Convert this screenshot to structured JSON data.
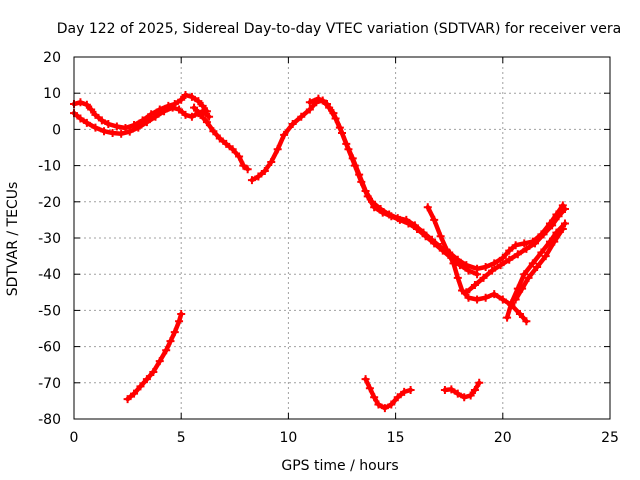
{
  "chart_data": {
    "type": "scatter",
    "title": "Day 122 of 2025, Sidereal Day-to-day VTEC variation (SDTVAR) for receiver vera",
    "xlabel": "GPS time / hours",
    "ylabel": "SDTVAR / TECUs",
    "xlim": [
      0,
      25
    ],
    "ylim": [
      -80,
      20
    ],
    "xticks": [
      0,
      5,
      10,
      15,
      20,
      25
    ],
    "yticks": [
      20,
      10,
      0,
      -10,
      -20,
      -30,
      -40,
      -50,
      -60,
      -70,
      -80
    ],
    "grid": true,
    "color": "#ff0000",
    "series": [
      {
        "name": "trace-1",
        "points": [
          [
            0.0,
            7.0
          ],
          [
            0.3,
            7.5
          ],
          [
            0.6,
            6.8
          ],
          [
            0.8,
            5.5
          ],
          [
            1.0,
            4.0
          ],
          [
            1.3,
            2.5
          ],
          [
            1.6,
            1.5
          ],
          [
            2.0,
            0.8
          ],
          [
            2.4,
            0.4
          ],
          [
            2.8,
            1.2
          ],
          [
            3.2,
            2.5
          ],
          [
            3.6,
            4.2
          ],
          [
            4.0,
            5.5
          ],
          [
            4.4,
            6.5
          ],
          [
            4.7,
            7.0
          ],
          [
            5.0,
            8.2
          ],
          [
            5.2,
            9.5
          ],
          [
            5.5,
            9.0
          ],
          [
            5.8,
            7.8
          ],
          [
            6.0,
            6.5
          ],
          [
            6.2,
            5.0
          ]
        ]
      },
      {
        "name": "trace-2",
        "points": [
          [
            0.0,
            4.5
          ],
          [
            0.3,
            3.0
          ],
          [
            0.6,
            1.8
          ],
          [
            1.0,
            0.5
          ],
          [
            1.4,
            -0.5
          ],
          [
            1.8,
            -1.0
          ],
          [
            2.2,
            -1.2
          ],
          [
            2.6,
            -0.6
          ],
          [
            3.0,
            0.5
          ],
          [
            3.4,
            2.0
          ],
          [
            3.8,
            3.5
          ],
          [
            4.2,
            5.0
          ],
          [
            4.6,
            6.0
          ],
          [
            4.9,
            5.5
          ],
          [
            5.2,
            4.0
          ],
          [
            5.5,
            3.5
          ],
          [
            5.8,
            4.5
          ],
          [
            6.0,
            5.0
          ],
          [
            6.3,
            3.5
          ]
        ]
      },
      {
        "name": "trace-3",
        "points": [
          [
            5.6,
            6.0
          ],
          [
            5.9,
            4.0
          ],
          [
            6.2,
            2.0
          ],
          [
            6.5,
            -0.5
          ],
          [
            6.8,
            -2.5
          ],
          [
            7.1,
            -4.0
          ],
          [
            7.4,
            -5.5
          ],
          [
            7.7,
            -7.5
          ],
          [
            7.9,
            -10.0
          ],
          [
            8.1,
            -11.0
          ]
        ]
      },
      {
        "name": "trace-4",
        "points": [
          [
            8.3,
            -14.0
          ],
          [
            8.6,
            -13.0
          ],
          [
            8.9,
            -11.5
          ],
          [
            9.2,
            -9.0
          ],
          [
            9.5,
            -5.5
          ],
          [
            9.8,
            -1.5
          ],
          [
            10.2,
            1.5
          ],
          [
            10.6,
            3.5
          ],
          [
            11.0,
            5.5
          ],
          [
            11.3,
            7.5
          ],
          [
            11.6,
            8.0
          ],
          [
            11.9,
            6.0
          ],
          [
            12.2,
            3.0
          ],
          [
            12.5,
            -1.0
          ],
          [
            12.8,
            -5.5
          ],
          [
            13.1,
            -10.0
          ],
          [
            13.4,
            -14.5
          ],
          [
            13.7,
            -18.5
          ],
          [
            14.0,
            -21.5
          ],
          [
            14.4,
            -23.0
          ],
          [
            14.8,
            -24.0
          ],
          [
            15.2,
            -25.0
          ],
          [
            15.6,
            -26.0
          ],
          [
            16.0,
            -27.5
          ],
          [
            16.4,
            -29.5
          ],
          [
            16.8,
            -31.5
          ],
          [
            17.2,
            -33.5
          ],
          [
            17.6,
            -35.5
          ],
          [
            18.0,
            -37.5
          ],
          [
            18.4,
            -39.0
          ],
          [
            18.8,
            -40.0
          ]
        ]
      },
      {
        "name": "trace-5",
        "points": [
          [
            11.0,
            7.5
          ],
          [
            11.4,
            8.5
          ],
          [
            11.8,
            7.0
          ],
          [
            12.1,
            4.5
          ],
          [
            12.4,
            0.5
          ],
          [
            12.7,
            -4.0
          ],
          [
            13.0,
            -8.0
          ],
          [
            13.3,
            -12.5
          ],
          [
            13.6,
            -17.0
          ],
          [
            13.9,
            -20.0
          ],
          [
            14.3,
            -22.0
          ],
          [
            14.7,
            -23.5
          ],
          [
            15.1,
            -24.5
          ],
          [
            15.5,
            -25.0
          ],
          [
            15.9,
            -26.5
          ],
          [
            16.3,
            -28.5
          ],
          [
            16.7,
            -30.5
          ],
          [
            17.1,
            -32.5
          ],
          [
            17.5,
            -34.0
          ],
          [
            17.9,
            -36.0
          ],
          [
            18.3,
            -37.5
          ],
          [
            18.8,
            -38.5
          ],
          [
            19.2,
            -38.0
          ],
          [
            19.6,
            -37.0
          ],
          [
            20.0,
            -35.5
          ],
          [
            20.3,
            -33.5
          ],
          [
            20.6,
            -32.0
          ],
          [
            21.0,
            -31.5
          ],
          [
            21.4,
            -31.0
          ],
          [
            21.8,
            -29.0
          ],
          [
            22.2,
            -26.0
          ],
          [
            22.5,
            -23.5
          ],
          [
            22.8,
            -21.0
          ]
        ]
      },
      {
        "name": "trace-6",
        "points": [
          [
            16.5,
            -21.5
          ],
          [
            16.8,
            -25.0
          ],
          [
            17.1,
            -29.5
          ],
          [
            17.4,
            -33.5
          ],
          [
            17.7,
            -37.0
          ],
          [
            17.9,
            -41.0
          ],
          [
            18.1,
            -44.5
          ],
          [
            18.4,
            -46.5
          ],
          [
            18.8,
            -47.0
          ],
          [
            19.2,
            -46.5
          ],
          [
            19.6,
            -45.5
          ],
          [
            20.0,
            -47.0
          ],
          [
            20.4,
            -48.5
          ],
          [
            20.8,
            -51.0
          ],
          [
            21.1,
            -53.0
          ]
        ]
      },
      {
        "name": "trace-7",
        "points": [
          [
            18.3,
            -45.0
          ],
          [
            18.7,
            -43.0
          ],
          [
            19.1,
            -41.0
          ],
          [
            19.5,
            -39.0
          ],
          [
            19.9,
            -37.5
          ],
          [
            20.3,
            -36.0
          ],
          [
            20.7,
            -34.5
          ],
          [
            21.1,
            -33.0
          ],
          [
            21.5,
            -31.5
          ],
          [
            21.9,
            -29.0
          ],
          [
            22.3,
            -26.5
          ],
          [
            22.6,
            -24.0
          ],
          [
            22.9,
            -22.0
          ]
        ]
      },
      {
        "name": "trace-8",
        "points": [
          [
            20.2,
            -52.0
          ],
          [
            20.4,
            -48.0
          ],
          [
            20.7,
            -44.0
          ],
          [
            21.0,
            -40.0
          ],
          [
            21.4,
            -37.0
          ],
          [
            21.8,
            -34.0
          ],
          [
            22.2,
            -31.0
          ],
          [
            22.5,
            -28.5
          ],
          [
            22.9,
            -26.0
          ]
        ]
      },
      {
        "name": "trace-9",
        "points": [
          [
            20.6,
            -47.0
          ],
          [
            20.9,
            -44.0
          ],
          [
            21.2,
            -41.0
          ],
          [
            21.6,
            -38.0
          ],
          [
            22.0,
            -35.0
          ],
          [
            22.4,
            -31.0
          ],
          [
            22.8,
            -27.5
          ]
        ]
      },
      {
        "name": "trace-10",
        "points": [
          [
            2.5,
            -74.5
          ],
          [
            2.8,
            -73.0
          ],
          [
            3.1,
            -71.0
          ],
          [
            3.4,
            -69.0
          ],
          [
            3.7,
            -67.0
          ],
          [
            4.0,
            -64.0
          ],
          [
            4.3,
            -61.0
          ],
          [
            4.5,
            -58.5
          ],
          [
            4.7,
            -56.0
          ],
          [
            4.9,
            -53.0
          ],
          [
            5.0,
            -51.0
          ]
        ]
      },
      {
        "name": "trace-11",
        "points": [
          [
            13.6,
            -69.0
          ],
          [
            13.8,
            -71.5
          ],
          [
            14.0,
            -74.0
          ],
          [
            14.2,
            -76.0
          ],
          [
            14.5,
            -77.0
          ],
          [
            14.8,
            -76.0
          ],
          [
            15.1,
            -74.0
          ],
          [
            15.4,
            -72.5
          ],
          [
            15.7,
            -72.0
          ]
        ]
      },
      {
        "name": "trace-12",
        "points": [
          [
            17.3,
            -72.0
          ],
          [
            17.6,
            -71.8
          ],
          [
            17.9,
            -73.0
          ],
          [
            18.2,
            -74.0
          ],
          [
            18.5,
            -73.5
          ],
          [
            18.7,
            -72.0
          ],
          [
            18.9,
            -70.0
          ]
        ]
      }
    ]
  }
}
